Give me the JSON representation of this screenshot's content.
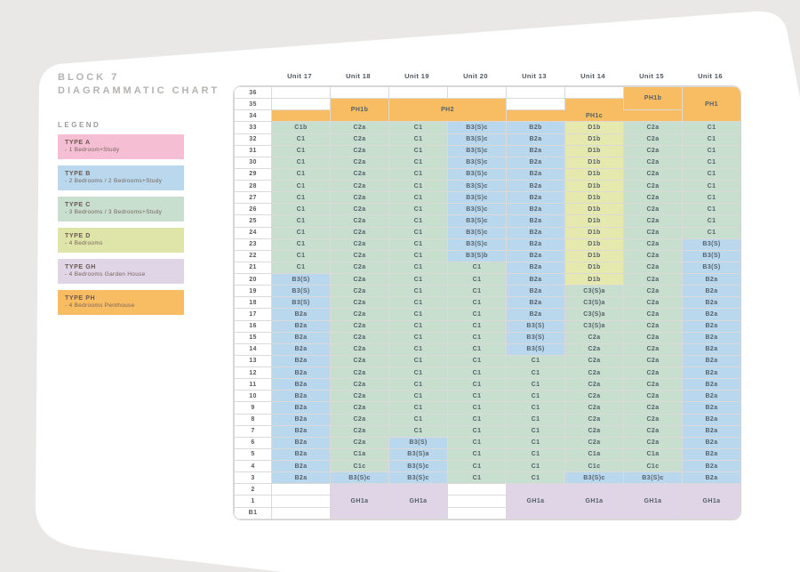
{
  "page": {
    "title_line1": "BLOCK 7",
    "title_line2": "DIAGRAMMATIC CHART",
    "legend_title": "LEGEND"
  },
  "legend": {
    "items": [
      {
        "type": "TYPE A",
        "desc": "- 1 Bedroom+Study",
        "color": "#f5bed3"
      },
      {
        "type": "TYPE B",
        "desc": "- 2 Bedrooms / 2 Bedrooms+Study",
        "color": "#b9d8ee"
      },
      {
        "type": "TYPE C",
        "desc": "- 3 Bedrooms / 3 Bedrooms+Study",
        "color": "#c8dfcf"
      },
      {
        "type": "TYPE D",
        "desc": "- 4 Bedrooms",
        "color": "#dfe5a9"
      },
      {
        "type": "TYPE GH",
        "desc": "- 4 Bedrooms Garden House",
        "color": "#e0d4e7"
      },
      {
        "type": "TYPE PH",
        "desc": "- 4 Bedrooms Penthouse",
        "color": "#f8bc62"
      }
    ]
  },
  "chart": {
    "columns": [
      "Unit 17",
      "Unit 18",
      "Unit 19",
      "Unit 20",
      "Unit 13",
      "Unit 14",
      "Unit 15",
      "Unit 16"
    ],
    "type_colors": {
      "A": "#f5bed3",
      "B": "#b9d8ee",
      "C": "#c8dfcf",
      "D": "#e6e9ae",
      "GH": "#e0d4e7",
      "PH": "#f8bc62",
      "": "#ffffff"
    },
    "rows": [
      {
        "floor": "36",
        "cells": [
          "",
          "",
          "",
          "",
          "",
          "",
          {
            "t": "PH1b",
            "rs": 2
          },
          {
            "t": "PH1",
            "rs": 3
          }
        ]
      },
      {
        "floor": "35",
        "cells": [
          "",
          {
            "t": "PH1b",
            "rs": 2
          },
          {
            "t": "PH2",
            "rs": 2,
            "cs": 2
          },
          "",
          {
            "t": "",
            "ty": "PH",
            "cls": "nb"
          }
        ]
      },
      {
        "floor": "34",
        "cells": [
          {
            "t": "",
            "ty": "PH"
          },
          {
            "t": "PH1c",
            "cs": 3,
            "cls": "nt"
          }
        ]
      },
      {
        "floor": "33",
        "cells": [
          "C1b",
          "C2a",
          "C1",
          "B3(S)c",
          "B2b",
          "D1b",
          "C2a",
          "C1"
        ]
      },
      {
        "floor": "32",
        "cells": [
          "C1",
          "C2a",
          "C1",
          "B3(S)c",
          "B2a",
          "D1b",
          "C2a",
          "C1"
        ]
      },
      {
        "floor": "31",
        "cells": [
          "C1",
          "C2a",
          "C1",
          "B3(S)c",
          "B2a",
          "D1b",
          "C2a",
          "C1"
        ]
      },
      {
        "floor": "30",
        "cells": [
          "C1",
          "C2a",
          "C1",
          "B3(S)c",
          "B2a",
          "D1b",
          "C2a",
          "C1"
        ]
      },
      {
        "floor": "29",
        "cells": [
          "C1",
          "C2a",
          "C1",
          "B3(S)c",
          "B2a",
          "D1b",
          "C2a",
          "C1"
        ]
      },
      {
        "floor": "28",
        "cells": [
          "C1",
          "C2a",
          "C1",
          "B3(S)c",
          "B2a",
          "D1b",
          "C2a",
          "C1"
        ]
      },
      {
        "floor": "27",
        "cells": [
          "C1",
          "C2a",
          "C1",
          "B3(S)c",
          "B2a",
          "D1b",
          "C2a",
          "C1"
        ]
      },
      {
        "floor": "26",
        "cells": [
          "C1",
          "C2a",
          "C1",
          "B3(S)c",
          "B2a",
          "D1b",
          "C2a",
          "C1"
        ]
      },
      {
        "floor": "25",
        "cells": [
          "C1",
          "C2a",
          "C1",
          "B3(S)c",
          "B2a",
          "D1b",
          "C2a",
          "C1"
        ]
      },
      {
        "floor": "24",
        "cells": [
          "C1",
          "C2a",
          "C1",
          "B3(S)c",
          "B2a",
          "D1b",
          "C2a",
          "C1"
        ]
      },
      {
        "floor": "23",
        "cells": [
          "C1",
          "C2a",
          "C1",
          "B3(S)c",
          "B2a",
          "D1b",
          "C2a",
          "B3(S)"
        ]
      },
      {
        "floor": "22",
        "cells": [
          "C1",
          "C2a",
          "C1",
          "B3(S)b",
          "B2a",
          "D1b",
          "C2a",
          "B3(S)"
        ]
      },
      {
        "floor": "21",
        "cells": [
          "C1",
          "C2a",
          "C1",
          "C1",
          "B2a",
          "D1b",
          "C2a",
          "B3(S)"
        ]
      },
      {
        "floor": "20",
        "cells": [
          "B3(S)",
          "C2a",
          "C1",
          "C1",
          "B2a",
          "D1b",
          "C2a",
          "B2a"
        ]
      },
      {
        "floor": "19",
        "cells": [
          "B3(S)",
          "C2a",
          "C1",
          "C1",
          "B2a",
          "C3(S)a",
          "C2a",
          "B2a"
        ]
      },
      {
        "floor": "18",
        "cells": [
          "B3(S)",
          "C2a",
          "C1",
          "C1",
          "B2a",
          "C3(S)a",
          "C2a",
          "B2a"
        ]
      },
      {
        "floor": "17",
        "cells": [
          "B2a",
          "C2a",
          "C1",
          "C1",
          "B2a",
          "C3(S)a",
          "C2a",
          "B2a"
        ]
      },
      {
        "floor": "16",
        "cells": [
          "B2a",
          "C2a",
          "C1",
          "C1",
          "B3(S)",
          "C3(S)a",
          "C2a",
          "B2a"
        ]
      },
      {
        "floor": "15",
        "cells": [
          "B2a",
          "C2a",
          "C1",
          "C1",
          "B3(S)",
          "C2a",
          "C2a",
          "B2a"
        ]
      },
      {
        "floor": "14",
        "cells": [
          "B2a",
          "C2a",
          "C1",
          "C1",
          "B3(S)",
          "C2a",
          "C2a",
          "B2a"
        ]
      },
      {
        "floor": "13",
        "cells": [
          "B2a",
          "C2a",
          "C1",
          "C1",
          "C1",
          "C2a",
          "C2a",
          "B2a"
        ]
      },
      {
        "floor": "12",
        "cells": [
          "B2a",
          "C2a",
          "C1",
          "C1",
          "C1",
          "C2a",
          "C2a",
          "B2a"
        ]
      },
      {
        "floor": "11",
        "cells": [
          "B2a",
          "C2a",
          "C1",
          "C1",
          "C1",
          "C2a",
          "C2a",
          "B2a"
        ]
      },
      {
        "floor": "10",
        "cells": [
          "B2a",
          "C2a",
          "C1",
          "C1",
          "C1",
          "C2a",
          "C2a",
          "B2a"
        ]
      },
      {
        "floor": "9",
        "cells": [
          "B2a",
          "C2a",
          "C1",
          "C1",
          "C1",
          "C2a",
          "C2a",
          "B2a"
        ]
      },
      {
        "floor": "8",
        "cells": [
          "B2a",
          "C2a",
          "C1",
          "C1",
          "C1",
          "C2a",
          "C2a",
          "B2a"
        ]
      },
      {
        "floor": "7",
        "cells": [
          "B2a",
          "C2a",
          "C1",
          "C1",
          "C1",
          "C2a",
          "C2a",
          "B2a"
        ]
      },
      {
        "floor": "6",
        "cells": [
          "B2a",
          "C2a",
          "B3(S)",
          "C1",
          "C1",
          "C2a",
          "C2a",
          "B2a"
        ]
      },
      {
        "floor": "5",
        "cells": [
          "B2a",
          "C1a",
          "B3(S)a",
          "C1",
          "C1",
          "C1a",
          "C1a",
          "B2a"
        ]
      },
      {
        "floor": "4",
        "cells": [
          "B2a",
          "C1c",
          "B3(S)c",
          "C1",
          "C1",
          "C1c",
          "C1c",
          "B2a"
        ]
      },
      {
        "floor": "3",
        "cells": [
          "B2a",
          "B3(S)c",
          "B3(S)c",
          "C1",
          "C1",
          "B3(S)c",
          "B3(S)c",
          "B2a"
        ]
      },
      {
        "floor": "2",
        "cells": [
          "",
          {
            "t": "GH1a",
            "rs": 3
          },
          {
            "t": "GH1a",
            "rs": 3
          },
          "",
          {
            "t": "GH1a",
            "rs": 3
          },
          {
            "t": "GH1a",
            "rs": 3
          },
          {
            "t": "GH1a",
            "rs": 3
          },
          {
            "t": "GH1a",
            "rs": 3
          }
        ]
      },
      {
        "floor": "1",
        "cells": [
          "",
          ""
        ]
      },
      {
        "floor": "B1",
        "cells": [
          "",
          ""
        ]
      }
    ]
  }
}
